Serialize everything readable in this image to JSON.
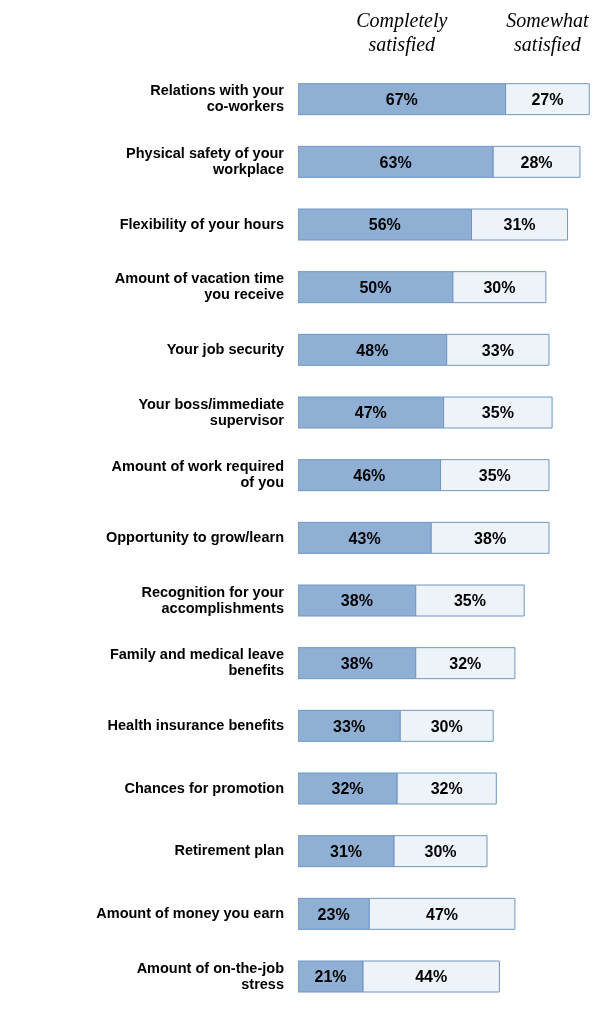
{
  "chart_data": {
    "type": "bar",
    "orientation": "horizontal",
    "stacked": true,
    "legend": "top",
    "categories": [
      "Relations with your co-workers",
      "Physical safety of your workplace",
      "Flexibility of your hours",
      "Amount of vacation time you receive",
      "Your job security",
      "Your boss/immediate supervisor",
      "Amount of work required of you",
      "Opportunity to grow/learn",
      "Recognition for your accomplishments",
      "Family and medical leave benefits",
      "Health insurance benefits",
      "Chances for promotion",
      "Retirement plan",
      "Amount of money you earn",
      "Amount of on-the-job stress"
    ],
    "series": [
      {
        "name": "Completely satisfied",
        "color": "#8fb0d4",
        "values": [
          67,
          63,
          56,
          50,
          48,
          47,
          46,
          43,
          38,
          38,
          33,
          32,
          31,
          23,
          21
        ],
        "value_labels": [
          "67%",
          "63%",
          "56%",
          "50%",
          "48%",
          "47%",
          "46%",
          "43%",
          "38%",
          "38%",
          "33%",
          "32%",
          "31%",
          "23%",
          "21%"
        ]
      },
      {
        "name": "Somewhat satisfied",
        "color": "#eef3f9",
        "values": [
          27,
          28,
          31,
          30,
          33,
          35,
          35,
          38,
          35,
          32,
          30,
          32,
          30,
          47,
          44
        ],
        "value_labels": [
          "27%",
          "28%",
          "31%",
          "30%",
          "33%",
          "35%",
          "35%",
          "38%",
          "35%",
          "32%",
          "30%",
          "32%",
          "30%",
          "47%",
          "44%"
        ]
      }
    ]
  }
}
